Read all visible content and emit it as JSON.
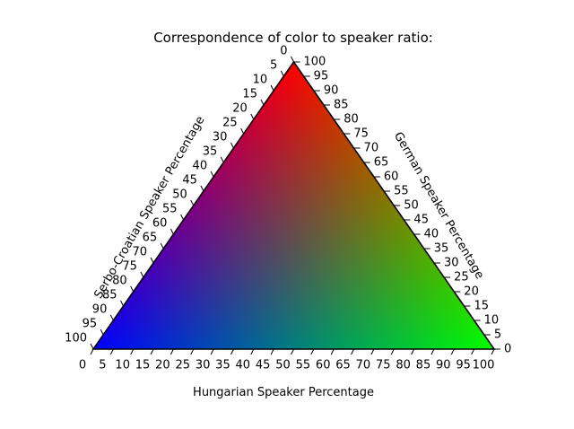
{
  "chart_data": {
    "type": "ternary",
    "title": "Correspondence of color to speaker ratio:",
    "axes": {
      "bottom": {
        "label": "Hungarian Speaker Percentage",
        "range": [
          0,
          100
        ],
        "step": 5
      },
      "right": {
        "label": "German Speaker Percentage",
        "range": [
          0,
          100
        ],
        "step": 5
      },
      "left": {
        "label": "Serbo-Croatian Speaker Percentage",
        "range": [
          0,
          100
        ],
        "step": 5
      }
    },
    "color_mapping": [
      {
        "series": "German",
        "vertex": "top",
        "color": "#ff0000"
      },
      {
        "series": "Hungarian",
        "vertex": "bottom-right",
        "color": "#00ff00"
      },
      {
        "series": "Serbo-Croatian",
        "vertex": "bottom-left",
        "color": "#0000ff"
      }
    ],
    "tick_values": [
      0,
      5,
      10,
      15,
      20,
      25,
      30,
      35,
      40,
      45,
      50,
      55,
      60,
      65,
      70,
      75,
      80,
      85,
      90,
      95,
      100
    ],
    "grid": false,
    "legend": "none"
  }
}
